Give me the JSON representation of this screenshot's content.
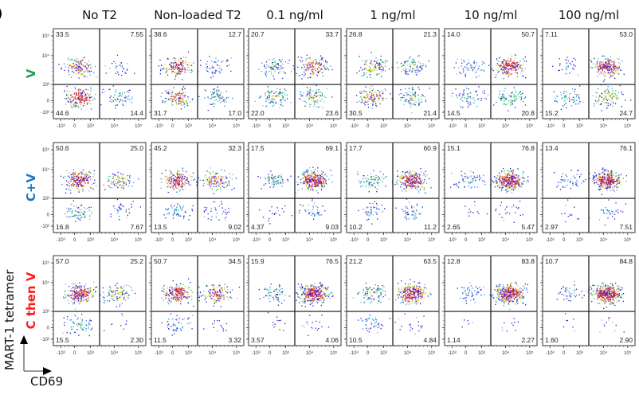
{
  "chart_data": {
    "type": "scatter",
    "subtype": "flow-cytometry-density-grid",
    "panel_letter": ")",
    "xlabel": "CD69",
    "ylabel": "MART-1 tetramer",
    "x_ticks": [
      "-10³",
      "0",
      "10³",
      "10⁴",
      "10⁵"
    ],
    "y_ticks": [
      "10⁵",
      "10⁴",
      "10³",
      "0",
      "-10³"
    ],
    "columns": [
      "No T2",
      "Non-loaded T2",
      "0.1 ng/ml",
      "1 ng/ml",
      "10 ng/ml",
      "100 ng/ml"
    ],
    "rows": [
      {
        "label": "V",
        "color": "#1aa34a"
      },
      {
        "label": "C+V",
        "color": "#1f77c4"
      },
      {
        "label": "C then V",
        "color": "#ff1a1a"
      }
    ],
    "quadrant_order": [
      "upper-left",
      "upper-right",
      "lower-left",
      "lower-right"
    ],
    "quadrants": [
      [
        [
          "33.5",
          "7.55",
          "44.6",
          "14.4"
        ],
        [
          "38.6",
          "12.7",
          "31.7",
          "17.0"
        ],
        [
          "20.7",
          "33.7",
          "22.0",
          "23.6"
        ],
        [
          "26.8",
          "21.3",
          "30.5",
          "21.4"
        ],
        [
          "14.0",
          "50.7",
          "14.5",
          "20.8"
        ],
        [
          "7.11",
          "53.0",
          "15.2",
          "24.7"
        ]
      ],
      [
        [
          "50.6",
          "25.0",
          "16.8",
          "7.67"
        ],
        [
          "45.2",
          "32.3",
          "13.5",
          "9.02"
        ],
        [
          "17.5",
          "69.1",
          "4.37",
          "9.03"
        ],
        [
          "17.7",
          "60.9",
          "10.2",
          "11.2"
        ],
        [
          "15.1",
          "76.8",
          "2.65",
          "5.47"
        ],
        [
          "13.4",
          "76.1",
          "2.97",
          "7.51"
        ]
      ],
      [
        [
          "57.0",
          "25.2",
          "15.5",
          "2.30"
        ],
        [
          "50.7",
          "34.5",
          "11.5",
          "3.32"
        ],
        [
          "15.9",
          "76.5",
          "3.57",
          "4.06"
        ],
        [
          "21.2",
          "63.5",
          "10.5",
          "4.84"
        ],
        [
          "12.8",
          "83.8",
          "1.14",
          "2.27"
        ],
        [
          "10.7",
          "84.8",
          "1.60",
          "2.90"
        ]
      ]
    ],
    "density_colormap": [
      "#2b1bd6",
      "#1f8fe0",
      "#27c97a",
      "#c7e021",
      "#f07a1a",
      "#e0261c"
    ]
  }
}
